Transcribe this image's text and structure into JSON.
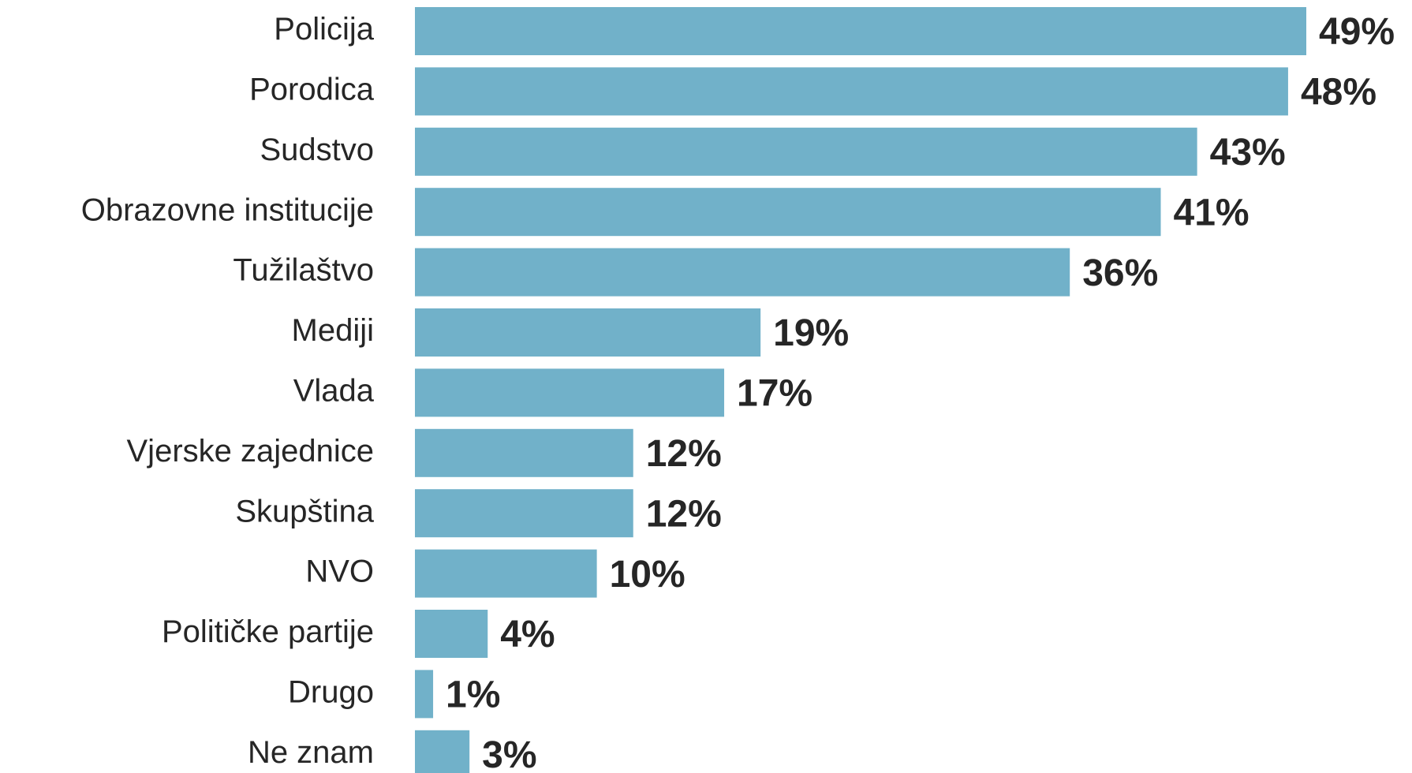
{
  "chart_data": {
    "type": "bar",
    "orientation": "horizontal",
    "categories": [
      "Policija",
      "Porodica",
      "Sudstvo",
      "Obrazovne institucije",
      "Tužilaštvo",
      "Mediji",
      "Vlada",
      "Vjerske zajednice",
      "Skupština",
      "NVO",
      "Političke partije",
      "Drugo",
      "Ne znam"
    ],
    "values": [
      49,
      48,
      43,
      41,
      36,
      19,
      17,
      12,
      12,
      10,
      4,
      1,
      3
    ],
    "value_labels": [
      "49%",
      "48%",
      "43%",
      "41%",
      "36%",
      "19%",
      "17%",
      "12%",
      "12%",
      "10%",
      "4%",
      "1%",
      "3%"
    ],
    "color": "#71b1c9"
  }
}
